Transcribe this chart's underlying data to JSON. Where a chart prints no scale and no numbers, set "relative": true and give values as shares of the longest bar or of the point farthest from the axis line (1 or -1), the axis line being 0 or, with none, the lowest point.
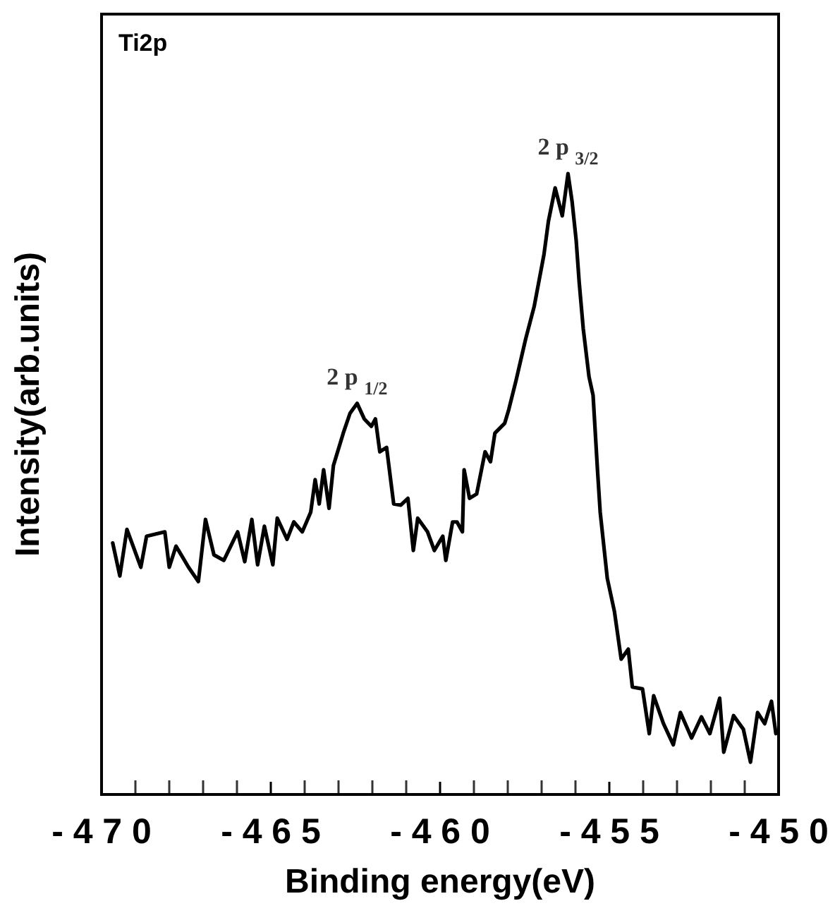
{
  "chart_data": {
    "type": "line",
    "xlabel": "Binding energy(eV)",
    "ylabel": "Intensity(arb.units)",
    "relative": true,
    "color": "#000000",
    "annotations": [
      "Ti2p",
      {
        "text": "2 p $_{1/2}$",
        "x": -462.45,
        "y": 0.63
      },
      {
        "text": "2 p $_{3/2}$",
        "x": -456.22,
        "y": 1.0
      }
    ],
    "xlim": [
      -470,
      -450
    ],
    "xticks": [
      -470,
      -465,
      -460,
      -455,
      -450
    ],
    "grid": false,
    "marker": "none",
    "line_style": "solid",
    "x": [
      -469.67,
      -469.46,
      -469.25,
      -468.84,
      -468.67,
      -468.13,
      -468.0,
      -467.8,
      -467.43,
      -467.14,
      -466.93,
      -466.68,
      -466.39,
      -465.98,
      -465.77,
      -465.56,
      -465.39,
      -465.19,
      -464.94,
      -464.81,
      -464.52,
      -464.32,
      -464.07,
      -463.82,
      -463.69,
      -463.57,
      -463.44,
      -463.28,
      -463.15,
      -462.86,
      -462.66,
      -462.45,
      -462.24,
      -462.03,
      -461.91,
      -461.78,
      -461.58,
      -461.37,
      -461.16,
      -460.95,
      -460.79,
      -460.66,
      -460.37,
      -460.17,
      -459.92,
      -459.83,
      -459.63,
      -459.5,
      -459.34,
      -459.29,
      -459.13,
      -458.92,
      -458.67,
      -458.51,
      -458.38,
      -458.09,
      -457.97,
      -457.76,
      -457.47,
      -457.22,
      -456.93,
      -456.8,
      -456.6,
      -456.39,
      -456.22,
      -456.1,
      -455.98,
      -455.89,
      -455.77,
      -455.6,
      -455.48,
      -455.35,
      -455.27,
      -455.06,
      -454.85,
      -454.65,
      -454.44,
      -454.32,
      -454.02,
      -453.82,
      -453.69,
      -453.4,
      -453.11,
      -452.9,
      -452.57,
      -452.28,
      -452.03,
      -451.74,
      -451.62,
      -451.33,
      -451.04,
      -450.83,
      -450.62,
      -450.41,
      -450.21,
      -450.08
    ],
    "values": [
      0.405,
      0.352,
      0.427,
      0.366,
      0.416,
      0.423,
      0.366,
      0.4,
      0.366,
      0.343,
      0.443,
      0.386,
      0.377,
      0.423,
      0.375,
      0.443,
      0.37,
      0.432,
      0.37,
      0.445,
      0.411,
      0.439,
      0.423,
      0.455,
      0.507,
      0.468,
      0.523,
      0.461,
      0.53,
      0.582,
      0.614,
      0.63,
      0.605,
      0.593,
      0.605,
      0.552,
      0.559,
      0.468,
      0.466,
      0.477,
      0.393,
      0.445,
      0.423,
      0.393,
      0.416,
      0.377,
      0.439,
      0.439,
      0.423,
      0.523,
      0.477,
      0.484,
      0.552,
      0.536,
      0.582,
      0.598,
      0.62,
      0.666,
      0.734,
      0.786,
      0.87,
      0.923,
      0.977,
      0.932,
      1.0,
      0.955,
      0.893,
      0.825,
      0.75,
      0.673,
      0.643,
      0.523,
      0.455,
      0.348,
      0.295,
      0.218,
      0.234,
      0.173,
      0.17,
      0.098,
      0.159,
      0.114,
      0.08,
      0.132,
      0.091,
      0.125,
      0.098,
      0.155,
      0.068,
      0.127,
      0.105,
      0.052,
      0.132,
      0.114,
      0.15,
      0.098
    ]
  }
}
